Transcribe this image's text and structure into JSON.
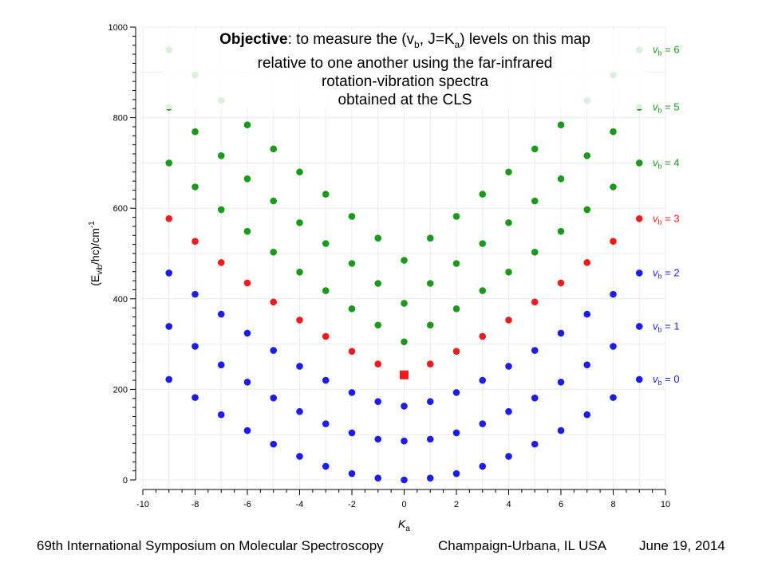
{
  "objective": {
    "lead": "Objective",
    "line1_pre": ": to measure the (v",
    "sub_b": "b",
    "line1_mid": ", J=K",
    "sub_a": "a",
    "line1_post": ") levels on this map",
    "line2": "relative to one another using the far-infrared",
    "line3": "rotation-vibration spectra",
    "line4": "obtained at the CLS"
  },
  "footer": {
    "conference": "69th International Symposium on Molecular Spectroscopy",
    "location": "Champaign-Urbana, IL  USA",
    "date": "June 19, 2014"
  },
  "chart_data": {
    "type": "scatter",
    "xlabel": "K",
    "xlabel_sub": "a",
    "ylabel_parts": [
      "(E",
      "vib",
      "/hc)/cm",
      "-1"
    ],
    "xlim": [
      -10,
      10
    ],
    "ylim": [
      0,
      1000
    ],
    "x_ticks": [
      -10,
      -8,
      -6,
      -4,
      -2,
      0,
      2,
      4,
      6,
      8,
      10
    ],
    "y_ticks": [
      0,
      200,
      400,
      600,
      800,
      1000
    ],
    "grid": true,
    "legend_placement": "right",
    "colors": {
      "green": "#1a9a1a",
      "red": "#ee1c1c",
      "blue": "#1c1ced"
    },
    "series": [
      {
        "name": "v_b = 0",
        "legend_v": "v",
        "legend_sub": "b",
        "legend_eq": " = 0",
        "color": "#1c1ced",
        "x": [
          -9,
          -8,
          -7,
          -6,
          -5,
          -4,
          -3,
          -2,
          -1,
          0,
          1,
          2,
          3,
          4,
          5,
          6,
          7,
          8,
          9
        ],
        "y": [
          222,
          182,
          144,
          109,
          79,
          52,
          30,
          14,
          4,
          0,
          4,
          14,
          30,
          52,
          79,
          109,
          144,
          182,
          222
        ]
      },
      {
        "name": "v_b = 1",
        "legend_v": "v",
        "legend_sub": "b",
        "legend_eq": " = 1",
        "color": "#1c1ced",
        "x": [
          -9,
          -8,
          -7,
          -6,
          -5,
          -4,
          -3,
          -2,
          -1,
          0,
          1,
          2,
          3,
          4,
          5,
          6,
          7,
          8,
          9
        ],
        "y": [
          339,
          295,
          254,
          216,
          181,
          151,
          124,
          104,
          90,
          86,
          90,
          104,
          124,
          151,
          181,
          216,
          254,
          295,
          339
        ]
      },
      {
        "name": "v_b = 2",
        "legend_v": "v",
        "legend_sub": "b",
        "legend_eq": " = 2",
        "color": "#1c1ced",
        "x": [
          -9,
          -8,
          -7,
          -6,
          -5,
          -4,
          -3,
          -2,
          -1,
          0,
          1,
          2,
          3,
          4,
          5,
          6,
          7,
          8,
          9
        ],
        "y": [
          457,
          410,
          366,
          324,
          286,
          251,
          220,
          193,
          173,
          163,
          173,
          193,
          220,
          251,
          286,
          324,
          366,
          410,
          457
        ]
      },
      {
        "name": "v_b = 3",
        "legend_v": "v",
        "legend_sub": "b",
        "legend_eq": " = 3",
        "color": "#ee1c1c",
        "x": [
          -9,
          -8,
          -7,
          -6,
          -5,
          -4,
          -3,
          -2,
          -1,
          0,
          1,
          2,
          3,
          4,
          5,
          6,
          7,
          8,
          9
        ],
        "y": [
          577,
          527,
          480,
          435,
          393,
          353,
          317,
          284,
          256,
          232,
          256,
          284,
          317,
          353,
          393,
          435,
          480,
          527,
          577
        ],
        "square_at_index": 9
      },
      {
        "name": "v_b = 4",
        "legend_v": "v",
        "legend_sub": "b",
        "legend_eq": " = 4",
        "color": "#1a9a1a",
        "x": [
          -9,
          -8,
          -7,
          -6,
          -5,
          -4,
          -3,
          -2,
          -1,
          0,
          1,
          2,
          3,
          4,
          5,
          6,
          7,
          8,
          9
        ],
        "y": [
          700,
          647,
          597,
          549,
          503,
          459,
          418,
          378,
          342,
          305,
          342,
          378,
          418,
          459,
          503,
          549,
          597,
          647,
          700
        ]
      },
      {
        "name": "v_b = 5",
        "legend_v": "v",
        "legend_sub": "b",
        "legend_eq": " = 5",
        "color": "#1a9a1a",
        "x": [
          -9,
          -8,
          -7,
          -6,
          -5,
          -4,
          -3,
          -2,
          -1,
          0,
          1,
          2,
          3,
          4,
          5,
          6,
          7,
          8,
          9
        ],
        "y": [
          823,
          769,
          716,
          665,
          616,
          568,
          522,
          478,
          434,
          390,
          434,
          478,
          522,
          568,
          616,
          665,
          716,
          769,
          823
        ]
      },
      {
        "name": "v_b = 6",
        "legend_v": "v",
        "legend_sub": "b",
        "legend_eq": " = 6",
        "color": "#1a9a1a",
        "x": [
          -9,
          -8,
          -7,
          -6,
          -5,
          -4,
          -3,
          -2,
          -1,
          0,
          1,
          2,
          3,
          4,
          5,
          6,
          7,
          8,
          9
        ],
        "y": [
          950,
          894,
          838,
          784,
          731,
          680,
          631,
          582,
          534,
          485,
          534,
          582,
          631,
          680,
          731,
          784,
          838,
          894,
          950
        ]
      }
    ]
  }
}
